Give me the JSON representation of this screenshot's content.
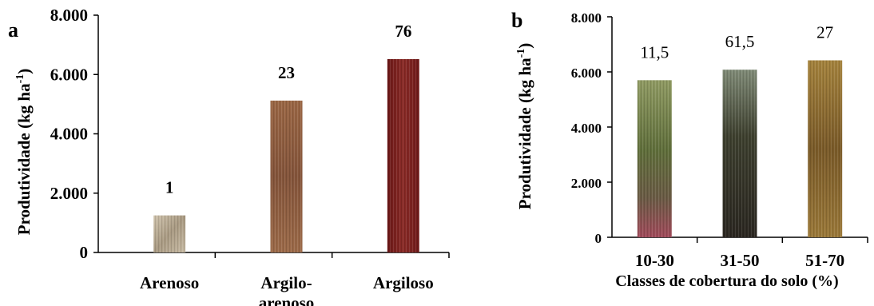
{
  "chart_data": [
    {
      "panel_label": "a",
      "type": "bar",
      "categories": [
        [
          "Arenoso"
        ],
        [
          "Argilo-",
          "arenoso"
        ],
        [
          "Argiloso"
        ]
      ],
      "values": [
        1250,
        5120,
        6520
      ],
      "data_labels": [
        "1",
        "23",
        "76"
      ],
      "ylabel": "Produtividade (kg ha-1)",
      "xlabel": "",
      "ylim": [
        0,
        8000
      ],
      "yticks": [
        0,
        2000,
        4000,
        6000,
        8000
      ],
      "ytick_labels": [
        "0",
        "2.000",
        "4.000",
        "6.000",
        "8.000"
      ],
      "grid": false,
      "bar_colors": [
        "#bcae98",
        "#8e5a3b",
        "#7a1e1e"
      ]
    },
    {
      "panel_label": "b",
      "type": "bar",
      "categories": [
        [
          "10-30"
        ],
        [
          "31-50"
        ],
        [
          "51-70"
        ]
      ],
      "values": [
        5700,
        6080,
        6420
      ],
      "data_labels": [
        "11,5",
        "61,5",
        "27"
      ],
      "ylabel": "Produtividade (kg ha-1)",
      "xlabel": "Classes de cobertura do solo (%)",
      "ylim": [
        0,
        8000
      ],
      "yticks": [
        0,
        2000,
        4000,
        6000,
        8000
      ],
      "ytick_labels": [
        "0",
        "2.000",
        "4.000",
        "6.000",
        "8.000"
      ],
      "grid": false,
      "bar_colors": [
        "#6f7a46",
        "#3e3a2a",
        "#8a6a30"
      ]
    }
  ]
}
